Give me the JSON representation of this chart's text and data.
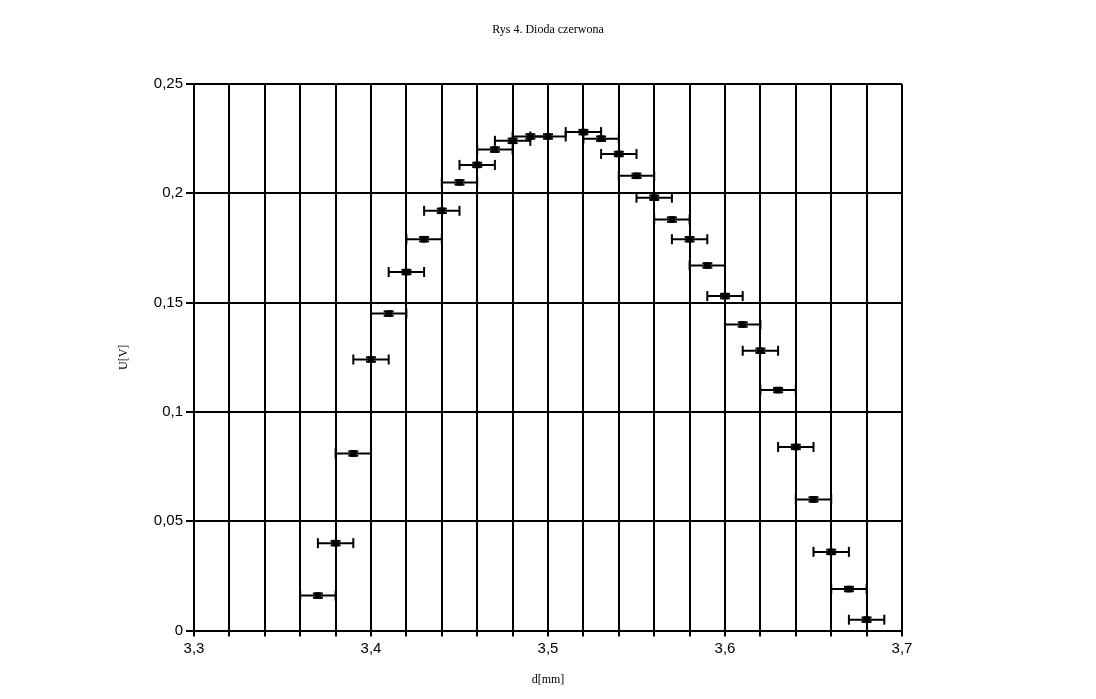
{
  "chart_data": {
    "type": "scatter",
    "title": "Rys 4. Dioda czerwona",
    "xlabel": "d[mm]",
    "ylabel": "U[V]",
    "x": [
      3.37,
      3.38,
      3.39,
      3.4,
      3.41,
      3.42,
      3.43,
      3.44,
      3.45,
      3.46,
      3.47,
      3.48,
      3.49,
      3.5,
      3.52,
      3.53,
      3.54,
      3.55,
      3.56,
      3.57,
      3.58,
      3.59,
      3.6,
      3.61,
      3.62,
      3.63,
      3.64,
      3.65,
      3.66,
      3.67,
      3.68
    ],
    "values": [
      0.016,
      0.04,
      0.081,
      0.124,
      0.145,
      0.164,
      0.179,
      0.192,
      0.205,
      0.213,
      0.22,
      0.224,
      0.226,
      0.226,
      0.228,
      0.225,
      0.218,
      0.208,
      0.198,
      0.188,
      0.179,
      0.167,
      0.153,
      0.14,
      0.128,
      0.11,
      0.084,
      0.06,
      0.036,
      0.019,
      0.005
    ],
    "errors": [
      0.001,
      0.001,
      0.001,
      0.001,
      0.001,
      0.001,
      0.001,
      0.001,
      0.001,
      0.001,
      0.001,
      0.001,
      0.001,
      0.001,
      0.001,
      0.001,
      0.001,
      0.001,
      0.001,
      0.001,
      0.001,
      0.001,
      0.001,
      0.001,
      0.001,
      0.001,
      0.001,
      0.001,
      0.001,
      0.001,
      0.001
    ],
    "xerrors": [
      0.01,
      0.01,
      0.01,
      0.01,
      0.01,
      0.01,
      0.01,
      0.01,
      0.01,
      0.01,
      0.01,
      0.01,
      0.01,
      0.01,
      0.01,
      0.01,
      0.01,
      0.01,
      0.01,
      0.01,
      0.01,
      0.01,
      0.01,
      0.01,
      0.01,
      0.01,
      0.01,
      0.01,
      0.01,
      0.01,
      0.01
    ],
    "color": "#000000",
    "xlim": [
      3.3,
      3.7
    ],
    "xticks": [
      {
        "value": 3.3,
        "label": "3,3"
      },
      {
        "value": 3.32,
        "label": null
      },
      {
        "value": 3.34,
        "label": null
      },
      {
        "value": 3.36,
        "label": null
      },
      {
        "value": 3.38,
        "label": null
      },
      {
        "value": 3.4,
        "label": "3,4"
      },
      {
        "value": 3.42,
        "label": null
      },
      {
        "value": 3.44,
        "label": null
      },
      {
        "value": 3.46,
        "label": null
      },
      {
        "value": 3.48,
        "label": null
      },
      {
        "value": 3.5,
        "label": "3,5"
      },
      {
        "value": 3.52,
        "label": null
      },
      {
        "value": 3.54,
        "label": null
      },
      {
        "value": 3.56,
        "label": null
      },
      {
        "value": 3.58,
        "label": null
      },
      {
        "value": 3.6,
        "label": "3,6"
      },
      {
        "value": 3.62,
        "label": null
      },
      {
        "value": 3.64,
        "label": null
      },
      {
        "value": 3.66,
        "label": null
      },
      {
        "value": 3.68,
        "label": null
      },
      {
        "value": 3.7,
        "label": "3,7"
      }
    ],
    "ylim": [
      0,
      0.25
    ],
    "yticks": [
      0,
      {
        "value": 0.05,
        "label": "0,05"
      },
      {
        "value": 0.1,
        "label": "0,1"
      },
      {
        "value": 0.15,
        "label": "0,15"
      },
      {
        "value": 0.2,
        "label": "0,2"
      },
      {
        "value": 0.25,
        "label": "0,25"
      }
    ],
    "grid": true,
    "legend": false,
    "marker": "square"
  }
}
